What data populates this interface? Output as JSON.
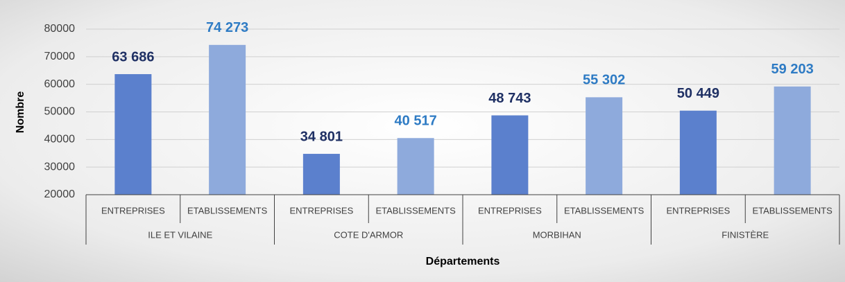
{
  "chart_data": {
    "type": "bar",
    "y_label": "Nombre",
    "x_label": "Départements",
    "categories": [
      "ILE ET VILAINE",
      "COTE D'ARMOR",
      "MORBIHAN",
      "FINISTÈRE"
    ],
    "series": [
      {
        "name": "ENTREPRISES",
        "color": "#5b80cd",
        "label_color": "#1f3064",
        "values": [
          63686,
          34801,
          48743,
          50449
        ],
        "value_labels": [
          "63 686",
          "34 801",
          "48 743",
          "50 449"
        ]
      },
      {
        "name": "ETABLISSEMENTS",
        "color": "#8eaadc",
        "label_color": "#2e7bc4",
        "values": [
          74273,
          40517,
          55302,
          59203
        ],
        "value_labels": [
          "74 273",
          "40 517",
          "55 302",
          "59 203"
        ]
      }
    ],
    "ylim": [
      20000,
      80000
    ],
    "yticks": [
      20000,
      30000,
      40000,
      50000,
      60000,
      70000,
      80000
    ],
    "grid": true
  }
}
